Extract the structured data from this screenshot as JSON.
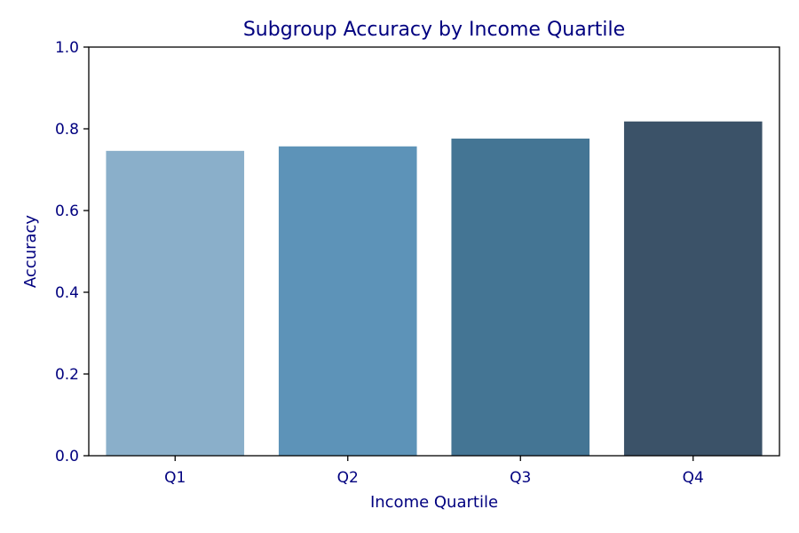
{
  "chart_data": {
    "type": "bar",
    "title": "Subgroup Accuracy by Income Quartile",
    "xlabel": "Income Quartile",
    "ylabel": "Accuracy",
    "categories": [
      "Q1",
      "Q2",
      "Q3",
      "Q4"
    ],
    "values": [
      0.746,
      0.757,
      0.776,
      0.818
    ],
    "ylim": [
      0,
      1.0
    ],
    "yticks": [
      "0.0",
      "0.2",
      "0.4",
      "0.6",
      "0.8",
      "1.0"
    ],
    "grid": false,
    "legend": "none",
    "bar_colors": [
      "#8aafca",
      "#5d93b8",
      "#447594",
      "#3b5268"
    ],
    "text_color": "#00007f",
    "axis_color": "#000000"
  }
}
